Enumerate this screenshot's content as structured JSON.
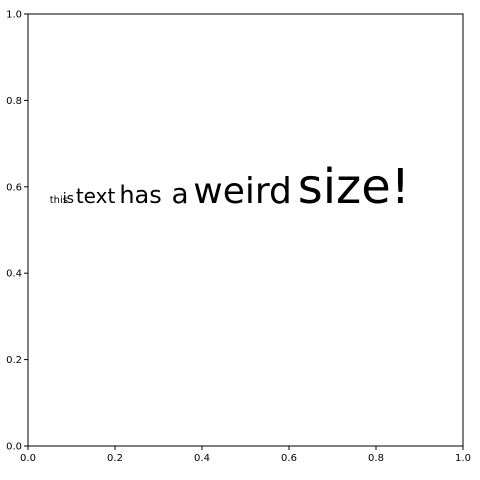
{
  "chart_data": {
    "type": "scatter",
    "title": "",
    "xlabel": "",
    "ylabel": "",
    "xlim": [
      0,
      1
    ],
    "ylim": [
      0,
      1
    ],
    "grid": false,
    "x_ticks": [
      "0.0",
      "0.2",
      "0.4",
      "0.6",
      "0.8",
      "1.0"
    ],
    "y_ticks": [
      "0.0",
      "0.2",
      "0.4",
      "0.6",
      "0.8",
      "1.0"
    ],
    "series": [],
    "annotations": [
      {
        "text": "this",
        "x": 0.05,
        "y": 0.57
      },
      {
        "text": "is",
        "x": 0.08,
        "y": 0.57
      },
      {
        "text": "text",
        "x": 0.11,
        "y": 0.57
      },
      {
        "text": "has",
        "x": 0.21,
        "y": 0.57
      },
      {
        "text": "a",
        "x": 0.33,
        "y": 0.57
      },
      {
        "text": "weird",
        "x": 0.38,
        "y": 0.57
      },
      {
        "text": "size!",
        "x": 0.62,
        "y": 0.57
      }
    ]
  }
}
